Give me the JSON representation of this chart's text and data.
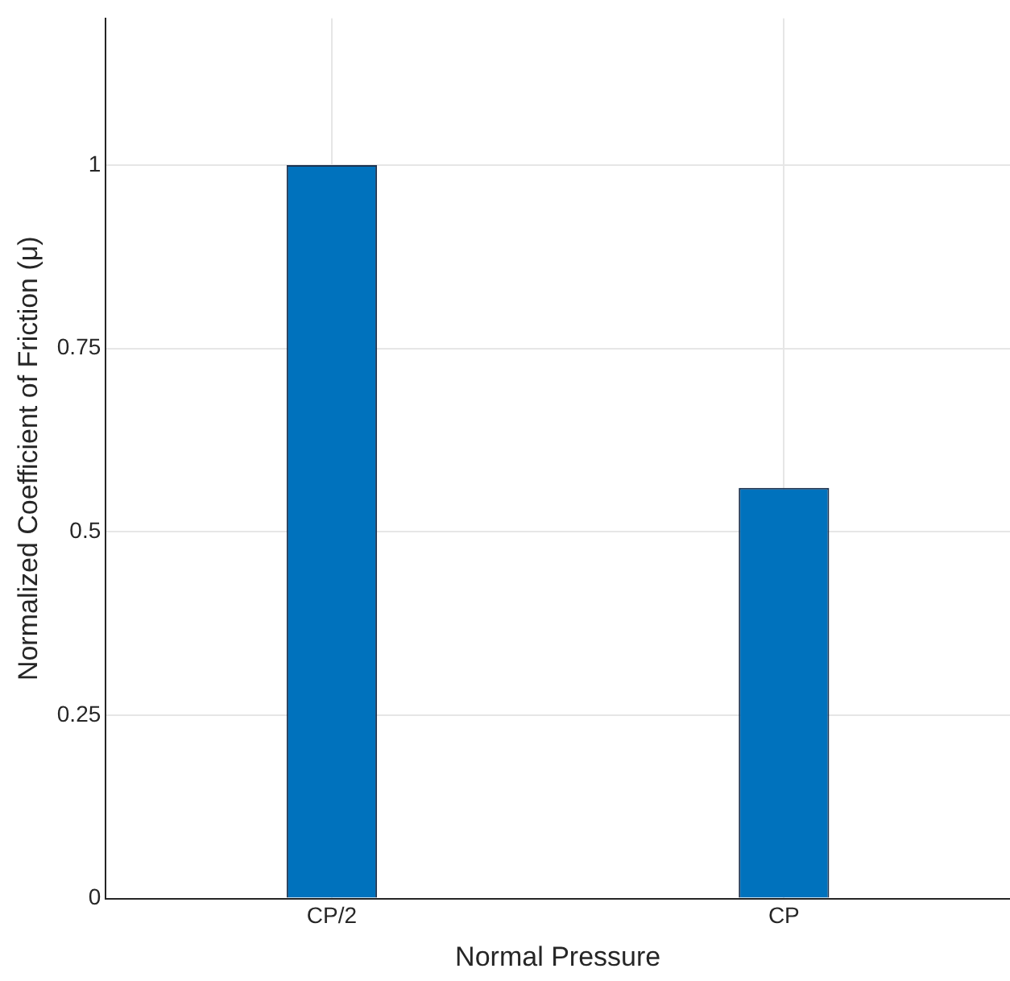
{
  "chart_data": {
    "type": "bar",
    "xlabel": "Normal Pressure",
    "ylabel": "Normalized Coefficient of Friction (μ)",
    "categories": [
      "CP/2",
      "CP"
    ],
    "values": [
      1,
      0.56
    ],
    "color": "#0072bd",
    "ylim": [
      0,
      1.2
    ],
    "yticks": [
      0,
      0.25,
      0.5,
      0.75,
      1
    ],
    "grid": true
  }
}
